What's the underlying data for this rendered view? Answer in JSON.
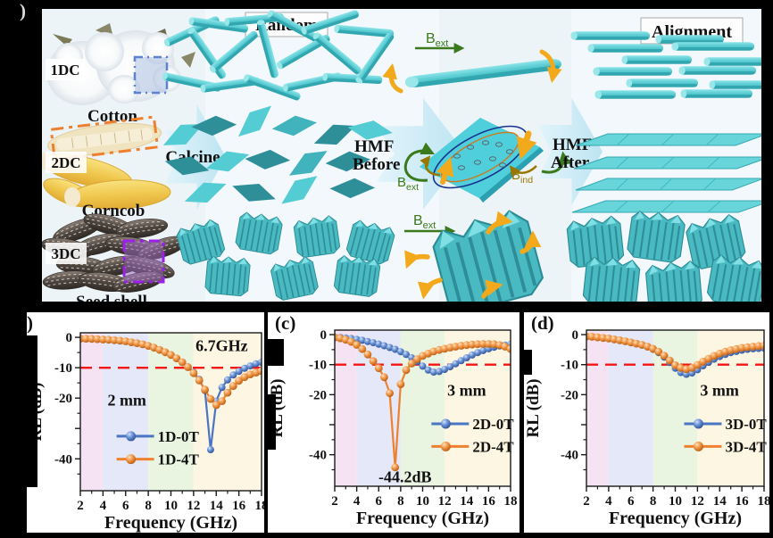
{
  "panel_a": {
    "label": ")",
    "photos": [
      {
        "tag": "1DC",
        "caption": "Cotton"
      },
      {
        "tag": "2DC",
        "caption": "Corncob"
      },
      {
        "tag": "3DC",
        "caption": "Seed shell"
      }
    ],
    "calcine": "Calcine",
    "random_title": "Random",
    "alignment_title": "Alignment",
    "hmf_before": {
      "line1": "HMF",
      "line2": "Before"
    },
    "hmf_after": {
      "line1": "HMF",
      "line2": "After"
    },
    "b_ext": {
      "base": "B",
      "sub": "ext"
    },
    "b_ind": {
      "base": "B",
      "sub": "ind"
    },
    "colors": {
      "rod_teal": "#5accd3",
      "flow_arrow": "#cfeaf6",
      "field_green": "#3b7a1c",
      "induced_gold": "#9a7800"
    }
  },
  "chart_data": [
    {
      "type": "line",
      "panel_label": ")",
      "xlabel": "Frequency (GHz)",
      "ylabel": "RL (dB)",
      "xlim": [
        2,
        18
      ],
      "ylim": [
        -50,
        0
      ],
      "x_ticks": [
        2,
        4,
        6,
        8,
        10,
        12,
        14,
        16,
        18
      ],
      "y_ticks": [
        0,
        -10,
        -20,
        -30,
        -40
      ],
      "y_tick_labels": [
        "0",
        "-10",
        "-20",
        "",
        "-40"
      ],
      "bands": [
        {
          "range": [
            2,
            4
          ],
          "color": "#f5e3f3"
        },
        {
          "range": [
            4,
            8
          ],
          "color": "#e4e8f8"
        },
        {
          "range": [
            8,
            12
          ],
          "color": "#eaf5e1"
        },
        {
          "range": [
            12,
            18
          ],
          "color": "#fdf6e2"
        }
      ],
      "ref_line": {
        "y": -10,
        "color": "#f51515",
        "style": "dashed"
      },
      "thickness_label": "2 mm",
      "annotation": {
        "text": "6.7GHz"
      },
      "legend_position": "left-center",
      "x": [
        2,
        2.5,
        3,
        3.5,
        4,
        4.5,
        5,
        5.5,
        6,
        6.5,
        7,
        7.5,
        8,
        8.5,
        9,
        9.5,
        10,
        10.5,
        11,
        11.5,
        12,
        12.5,
        13,
        13.5,
        14,
        14.5,
        15,
        15.5,
        16,
        16.5,
        17,
        17.5,
        18
      ],
      "series": [
        {
          "name": "1D-0T",
          "color": "#4a74c4",
          "values": [
            -0.4,
            -0.45,
            -0.5,
            -0.6,
            -0.7,
            -0.8,
            -0.95,
            -1.1,
            -1.3,
            -1.6,
            -1.9,
            -2.3,
            -2.8,
            -3.4,
            -4.1,
            -4.9,
            -5.8,
            -6.9,
            -8.2,
            -9.7,
            -11.5,
            -13.8,
            -17.5,
            -37,
            -21,
            -16.5,
            -14,
            -12.4,
            -11.2,
            -10.2,
            -9.4,
            -8.7,
            -8.2
          ]
        },
        {
          "name": "1D-4T",
          "color": "#ee8130",
          "values": [
            -0.4,
            -0.45,
            -0.5,
            -0.6,
            -0.7,
            -0.8,
            -0.95,
            -1.1,
            -1.3,
            -1.6,
            -1.9,
            -2.3,
            -2.8,
            -3.4,
            -4.1,
            -4.9,
            -5.8,
            -6.9,
            -8.2,
            -9.8,
            -11.8,
            -14.2,
            -17.2,
            -20.3,
            -22.3,
            -21.0,
            -18.2,
            -16.0,
            -14.3,
            -13.1,
            -12.2,
            -11.6,
            -11.1
          ]
        }
      ]
    },
    {
      "type": "line",
      "panel_label": "(c)",
      "xlabel": "Frequency (GHz)",
      "ylabel": "RL (dB)",
      "xlim": [
        2,
        18
      ],
      "ylim": [
        -50,
        0
      ],
      "x_ticks": [
        2,
        4,
        6,
        8,
        10,
        12,
        14,
        16,
        18
      ],
      "y_ticks": [
        0,
        -10,
        -20,
        -30,
        -40
      ],
      "y_tick_labels": [
        "0",
        "-10",
        "-20",
        "",
        "-40"
      ],
      "bands": [
        {
          "range": [
            2,
            4
          ],
          "color": "#f5e3f3"
        },
        {
          "range": [
            4,
            8
          ],
          "color": "#e4e8f8"
        },
        {
          "range": [
            8,
            12
          ],
          "color": "#eaf5e1"
        },
        {
          "range": [
            12,
            18
          ],
          "color": "#fdf6e2"
        }
      ],
      "ref_line": {
        "y": -10,
        "color": "#f51515",
        "style": "dashed"
      },
      "thickness_label": "3 mm",
      "annotation": {
        "text": "-44.2dB"
      },
      "legend_position": "right-center",
      "x": [
        2,
        2.5,
        3,
        3.5,
        4,
        4.5,
        5,
        5.5,
        6,
        6.5,
        7,
        7.5,
        8,
        8.5,
        9,
        9.5,
        10,
        10.5,
        11,
        11.5,
        12,
        12.5,
        13,
        13.5,
        14,
        14.5,
        15,
        15.5,
        16,
        16.5,
        17,
        17.5,
        18
      ],
      "series": [
        {
          "name": "2D-0T",
          "color": "#4a74c4",
          "values": [
            -0.8,
            -0.9,
            -1.1,
            -1.3,
            -1.6,
            -1.9,
            -2.3,
            -2.7,
            -3.2,
            -3.7,
            -4.3,
            -4.9,
            -5.7,
            -6.6,
            -7.7,
            -9.0,
            -10.5,
            -11.8,
            -12.5,
            -12.3,
            -11.6,
            -10.7,
            -9.7,
            -8.7,
            -7.7,
            -6.8,
            -6.0,
            -5.3,
            -4.7,
            -4.2,
            -3.8,
            -3.5,
            -3.2
          ]
        },
        {
          "name": "2D-4T",
          "color": "#ee8130",
          "values": [
            -0.9,
            -1.2,
            -1.7,
            -2.4,
            -3.4,
            -4.8,
            -6.6,
            -8.8,
            -11.2,
            -14.2,
            -19.5,
            -44.2,
            -16.5,
            -11.8,
            -9.6,
            -8.2,
            -7.1,
            -6.3,
            -5.6,
            -5.1,
            -4.7,
            -4.3,
            -4.0,
            -3.7,
            -3.5,
            -3.3,
            -3.2,
            -3.1,
            -3.1,
            -3.2,
            -3.5,
            -4.0,
            -4.8
          ]
        }
      ]
    },
    {
      "type": "line",
      "panel_label": "(d)",
      "xlabel": "Frequency (GHz)",
      "ylabel": "RL (dB)",
      "xlim": [
        2,
        18
      ],
      "ylim": [
        -50,
        0
      ],
      "x_ticks": [
        2,
        4,
        6,
        8,
        10,
        12,
        14,
        16,
        18
      ],
      "y_ticks": [
        0,
        -10,
        -20,
        -30,
        -40
      ],
      "y_tick_labels": [
        "0",
        "-10",
        "-20",
        "",
        "-40"
      ],
      "bands": [
        {
          "range": [
            2,
            4
          ],
          "color": "#f5e3f3"
        },
        {
          "range": [
            4,
            8
          ],
          "color": "#e4e8f8"
        },
        {
          "range": [
            8,
            12
          ],
          "color": "#eaf5e1"
        },
        {
          "range": [
            12,
            18
          ],
          "color": "#fdf6e2"
        }
      ],
      "ref_line": {
        "y": -10,
        "color": "#f51515",
        "style": "dashed"
      },
      "thickness_label": "3 mm",
      "annotation": null,
      "legend_position": "right-center",
      "x": [
        2,
        2.5,
        3,
        3.5,
        4,
        4.5,
        5,
        5.5,
        6,
        6.5,
        7,
        7.5,
        8,
        8.5,
        9,
        9.5,
        10,
        10.5,
        11,
        11.5,
        12,
        12.5,
        13,
        13.5,
        14,
        14.5,
        15,
        15.5,
        16,
        16.5,
        17,
        17.5,
        18
      ],
      "series": [
        {
          "name": "3D-0T",
          "color": "#4a74c4",
          "values": [
            -0.6,
            -0.7,
            -0.9,
            -1.1,
            -1.3,
            -1.6,
            -1.9,
            -2.2,
            -2.6,
            -3.0,
            -3.5,
            -4.1,
            -4.9,
            -6.0,
            -7.5,
            -9.3,
            -11.2,
            -12.6,
            -13.2,
            -12.8,
            -11.7,
            -10.4,
            -9.2,
            -8.2,
            -7.3,
            -6.6,
            -6.0,
            -5.6,
            -5.2,
            -4.9,
            -4.7,
            -4.6,
            -4.5
          ]
        },
        {
          "name": "3D-4T",
          "color": "#ee8130",
          "values": [
            -0.6,
            -0.7,
            -0.9,
            -1.1,
            -1.3,
            -1.6,
            -1.9,
            -2.2,
            -2.6,
            -3.0,
            -3.4,
            -4.0,
            -4.7,
            -5.7,
            -7.0,
            -8.6,
            -10.2,
            -11.1,
            -11.5,
            -11.1,
            -10.1,
            -9.0,
            -8.0,
            -7.1,
            -6.3,
            -5.7,
            -5.2,
            -4.8,
            -4.4,
            -4.2,
            -4.0,
            -3.8,
            -3.7
          ]
        }
      ]
    }
  ]
}
